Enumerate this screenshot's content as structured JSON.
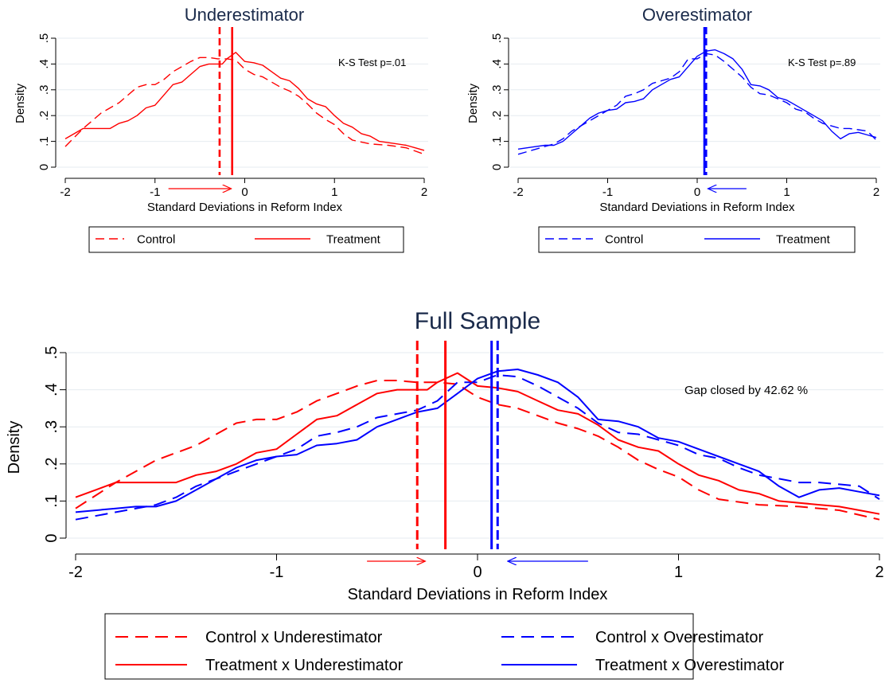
{
  "colors": {
    "underestimator": "#ff0000",
    "overestimator": "#0000ff",
    "title": "#1a2a4a",
    "grid": "#e6ebf0",
    "axis": "#000000"
  },
  "chart_data": [
    {
      "type": "line",
      "title": "Underestimator",
      "xlabel": "Standard Deviations in Reform Index",
      "ylabel": "Density",
      "xlim": [
        -2,
        2
      ],
      "ylim": [
        0,
        0.5
      ],
      "xticks": [
        -2,
        -1,
        0,
        1,
        2
      ],
      "xtick_labels": [
        "-2",
        "-1",
        "0",
        "1",
        "2"
      ],
      "yticks": [
        0,
        0.1,
        0.2,
        0.3,
        0.4,
        0.5
      ],
      "ytick_labels": [
        "0",
        ".1",
        ".2",
        ".3",
        ".4",
        ".5"
      ],
      "grid": true,
      "annotation": "K-S Test p=.01",
      "arrow": {
        "from": -0.85,
        "to": -0.15,
        "color": "red"
      },
      "vlines": [
        {
          "x": -0.28,
          "style": "dashed",
          "color": "red"
        },
        {
          "x": -0.14,
          "style": "solid",
          "color": "red"
        }
      ],
      "series": [
        {
          "name": "Control",
          "style": "dashed",
          "color": "red",
          "x": [
            -2.0,
            -1.8,
            -1.6,
            -1.5,
            -1.4,
            -1.2,
            -1.1,
            -1.0,
            -0.9,
            -0.8,
            -0.7,
            -0.6,
            -0.5,
            -0.4,
            -0.3,
            -0.2,
            -0.1,
            0.0,
            0.1,
            0.2,
            0.3,
            0.4,
            0.5,
            0.6,
            0.7,
            0.8,
            0.9,
            1.0,
            1.1,
            1.2,
            1.4,
            1.6,
            1.8,
            2.0
          ],
          "y": [
            0.08,
            0.15,
            0.21,
            0.23,
            0.25,
            0.31,
            0.32,
            0.32,
            0.34,
            0.37,
            0.39,
            0.41,
            0.425,
            0.425,
            0.42,
            0.42,
            0.415,
            0.38,
            0.36,
            0.35,
            0.33,
            0.31,
            0.295,
            0.275,
            0.245,
            0.21,
            0.185,
            0.165,
            0.13,
            0.105,
            0.09,
            0.085,
            0.075,
            0.05
          ]
        },
        {
          "name": "Treatment",
          "style": "solid",
          "color": "red",
          "x": [
            -2.0,
            -1.9,
            -1.8,
            -1.7,
            -1.6,
            -1.5,
            -1.4,
            -1.3,
            -1.2,
            -1.1,
            -1.0,
            -0.9,
            -0.8,
            -0.7,
            -0.6,
            -0.5,
            -0.4,
            -0.3,
            -0.25,
            -0.2,
            -0.1,
            0.0,
            0.1,
            0.2,
            0.3,
            0.4,
            0.5,
            0.6,
            0.7,
            0.8,
            0.9,
            1.0,
            1.1,
            1.2,
            1.3,
            1.4,
            1.5,
            1.6,
            1.7,
            1.8,
            1.9,
            2.0
          ],
          "y": [
            0.11,
            0.13,
            0.15,
            0.15,
            0.15,
            0.15,
            0.17,
            0.18,
            0.2,
            0.23,
            0.24,
            0.28,
            0.32,
            0.33,
            0.36,
            0.39,
            0.4,
            0.4,
            0.4,
            0.42,
            0.445,
            0.41,
            0.405,
            0.395,
            0.37,
            0.345,
            0.335,
            0.305,
            0.265,
            0.245,
            0.235,
            0.2,
            0.17,
            0.155,
            0.13,
            0.12,
            0.1,
            0.095,
            0.09,
            0.085,
            0.075,
            0.065
          ]
        }
      ],
      "legend": {
        "position": "bottom",
        "entries": [
          "Control",
          "Treatment"
        ]
      }
    },
    {
      "type": "line",
      "title": "Overestimator",
      "xlabel": "Standard Deviations in Reform Index",
      "ylabel": "Density",
      "xlim": [
        -2,
        2
      ],
      "ylim": [
        0,
        0.5
      ],
      "xticks": [
        -2,
        -1,
        0,
        1,
        2
      ],
      "xtick_labels": [
        "-2",
        "-1",
        "0",
        "1",
        "2"
      ],
      "yticks": [
        0,
        0.1,
        0.2,
        0.3,
        0.4,
        0.5
      ],
      "ytick_labels": [
        "0",
        ".1",
        ".2",
        ".3",
        ".4",
        ".5"
      ],
      "grid": true,
      "annotation": "K-S Test p=.89",
      "arrow": {
        "from": 0.55,
        "to": 0.12,
        "color": "blue"
      },
      "vlines": [
        {
          "x": 0.08,
          "style": "solid",
          "color": "blue"
        },
        {
          "x": 0.1,
          "style": "dashed",
          "color": "blue"
        }
      ],
      "series": [
        {
          "name": "Control",
          "style": "dashed",
          "color": "blue",
          "x": [
            -2.0,
            -1.8,
            -1.6,
            -1.5,
            -1.4,
            -1.2,
            -1.0,
            -0.9,
            -0.8,
            -0.7,
            -0.6,
            -0.5,
            -0.4,
            -0.3,
            -0.2,
            -0.1,
            0.0,
            0.1,
            0.2,
            0.3,
            0.4,
            0.5,
            0.6,
            0.7,
            0.8,
            0.9,
            1.0,
            1.1,
            1.2,
            1.3,
            1.4,
            1.5,
            1.6,
            1.7,
            1.8,
            1.9,
            2.0
          ],
          "y": [
            0.05,
            0.07,
            0.09,
            0.11,
            0.14,
            0.18,
            0.22,
            0.24,
            0.275,
            0.285,
            0.3,
            0.325,
            0.335,
            0.345,
            0.37,
            0.42,
            0.42,
            0.44,
            0.435,
            0.41,
            0.38,
            0.35,
            0.31,
            0.285,
            0.28,
            0.265,
            0.25,
            0.225,
            0.215,
            0.19,
            0.17,
            0.16,
            0.15,
            0.15,
            0.145,
            0.14,
            0.105
          ]
        },
        {
          "name": "Treatment",
          "style": "solid",
          "color": "blue",
          "x": [
            -2.0,
            -1.8,
            -1.7,
            -1.6,
            -1.5,
            -1.4,
            -1.3,
            -1.2,
            -1.1,
            -1.0,
            -0.9,
            -0.8,
            -0.7,
            -0.6,
            -0.5,
            -0.4,
            -0.3,
            -0.2,
            -0.1,
            0.0,
            0.1,
            0.2,
            0.3,
            0.4,
            0.5,
            0.6,
            0.7,
            0.8,
            0.9,
            1.0,
            1.1,
            1.2,
            1.3,
            1.4,
            1.5,
            1.6,
            1.7,
            1.8,
            1.9,
            2.0
          ],
          "y": [
            0.07,
            0.08,
            0.085,
            0.085,
            0.1,
            0.13,
            0.16,
            0.19,
            0.21,
            0.22,
            0.225,
            0.25,
            0.255,
            0.265,
            0.3,
            0.32,
            0.34,
            0.35,
            0.39,
            0.43,
            0.45,
            0.455,
            0.44,
            0.42,
            0.38,
            0.32,
            0.315,
            0.3,
            0.27,
            0.26,
            0.24,
            0.22,
            0.2,
            0.18,
            0.14,
            0.11,
            0.13,
            0.135,
            0.125,
            0.115
          ]
        }
      ],
      "legend": {
        "position": "bottom",
        "entries": [
          "Control",
          "Treatment"
        ]
      }
    },
    {
      "type": "line",
      "title": "Full Sample",
      "xlabel": "Standard Deviations in Reform Index",
      "ylabel": "Density",
      "xlim": [
        -2,
        2
      ],
      "ylim": [
        0,
        0.5
      ],
      "xticks": [
        -2,
        -1,
        0,
        1,
        2
      ],
      "xtick_labels": [
        "-2",
        "-1",
        "0",
        "1",
        "2"
      ],
      "yticks": [
        0,
        0.1,
        0.2,
        0.3,
        0.4,
        0.5
      ],
      "ytick_labels": [
        "0",
        ".1",
        ".2",
        ".3",
        ".4",
        ".5"
      ],
      "grid": true,
      "annotation": "Gap closed by 42.62 %",
      "arrows": [
        {
          "from": -0.55,
          "to": -0.26,
          "color": "red"
        },
        {
          "from": 0.55,
          "to": 0.15,
          "color": "blue"
        }
      ],
      "vlines": [
        {
          "x": -0.3,
          "style": "dashed",
          "color": "red"
        },
        {
          "x": -0.16,
          "style": "solid",
          "color": "red"
        },
        {
          "x": 0.07,
          "style": "solid",
          "color": "blue"
        },
        {
          "x": 0.1,
          "style": "dashed",
          "color": "blue"
        }
      ],
      "series": [
        {
          "name": "Control x Underestimator",
          "style": "dashed",
          "color": "red",
          "x": [
            -2.0,
            -1.8,
            -1.6,
            -1.5,
            -1.4,
            -1.2,
            -1.1,
            -1.0,
            -0.9,
            -0.8,
            -0.7,
            -0.6,
            -0.5,
            -0.4,
            -0.3,
            -0.2,
            -0.1,
            0.0,
            0.1,
            0.2,
            0.3,
            0.4,
            0.5,
            0.6,
            0.7,
            0.8,
            0.9,
            1.0,
            1.1,
            1.2,
            1.4,
            1.6,
            1.8,
            2.0
          ],
          "y": [
            0.08,
            0.15,
            0.21,
            0.23,
            0.25,
            0.31,
            0.32,
            0.32,
            0.34,
            0.37,
            0.39,
            0.41,
            0.425,
            0.425,
            0.42,
            0.42,
            0.415,
            0.38,
            0.36,
            0.35,
            0.33,
            0.31,
            0.295,
            0.275,
            0.245,
            0.21,
            0.185,
            0.165,
            0.13,
            0.105,
            0.09,
            0.085,
            0.075,
            0.05
          ]
        },
        {
          "name": "Control x Overestimator",
          "style": "dashed",
          "color": "blue",
          "x": [
            -2.0,
            -1.8,
            -1.6,
            -1.5,
            -1.4,
            -1.2,
            -1.0,
            -0.9,
            -0.8,
            -0.7,
            -0.6,
            -0.5,
            -0.4,
            -0.3,
            -0.2,
            -0.1,
            0.0,
            0.1,
            0.2,
            0.3,
            0.4,
            0.5,
            0.6,
            0.7,
            0.8,
            0.9,
            1.0,
            1.1,
            1.2,
            1.3,
            1.4,
            1.5,
            1.6,
            1.7,
            1.8,
            1.9,
            2.0
          ],
          "y": [
            0.05,
            0.07,
            0.09,
            0.11,
            0.14,
            0.18,
            0.22,
            0.24,
            0.275,
            0.285,
            0.3,
            0.325,
            0.335,
            0.345,
            0.37,
            0.42,
            0.42,
            0.44,
            0.435,
            0.41,
            0.38,
            0.35,
            0.31,
            0.285,
            0.28,
            0.265,
            0.25,
            0.225,
            0.215,
            0.19,
            0.17,
            0.16,
            0.15,
            0.15,
            0.145,
            0.14,
            0.105
          ]
        },
        {
          "name": "Treatment x Underestimator",
          "style": "solid",
          "color": "red",
          "x": [
            -2.0,
            -1.9,
            -1.8,
            -1.7,
            -1.6,
            -1.5,
            -1.4,
            -1.3,
            -1.2,
            -1.1,
            -1.0,
            -0.9,
            -0.8,
            -0.7,
            -0.6,
            -0.5,
            -0.4,
            -0.3,
            -0.25,
            -0.2,
            -0.1,
            0.0,
            0.1,
            0.2,
            0.3,
            0.4,
            0.5,
            0.6,
            0.7,
            0.8,
            0.9,
            1.0,
            1.1,
            1.2,
            1.3,
            1.4,
            1.5,
            1.6,
            1.7,
            1.8,
            1.9,
            2.0
          ],
          "y": [
            0.11,
            0.13,
            0.15,
            0.15,
            0.15,
            0.15,
            0.17,
            0.18,
            0.2,
            0.23,
            0.24,
            0.28,
            0.32,
            0.33,
            0.36,
            0.39,
            0.4,
            0.4,
            0.4,
            0.42,
            0.445,
            0.41,
            0.405,
            0.395,
            0.37,
            0.345,
            0.335,
            0.305,
            0.265,
            0.245,
            0.235,
            0.2,
            0.17,
            0.155,
            0.13,
            0.12,
            0.1,
            0.095,
            0.09,
            0.085,
            0.075,
            0.065
          ]
        },
        {
          "name": "Treatment x Overestimator",
          "style": "solid",
          "color": "blue",
          "x": [
            -2.0,
            -1.8,
            -1.7,
            -1.6,
            -1.5,
            -1.4,
            -1.3,
            -1.2,
            -1.1,
            -1.0,
            -0.9,
            -0.8,
            -0.7,
            -0.6,
            -0.5,
            -0.4,
            -0.3,
            -0.2,
            -0.1,
            0.0,
            0.1,
            0.2,
            0.3,
            0.4,
            0.5,
            0.6,
            0.7,
            0.8,
            0.9,
            1.0,
            1.1,
            1.2,
            1.3,
            1.4,
            1.5,
            1.6,
            1.7,
            1.8,
            1.9,
            2.0
          ],
          "y": [
            0.07,
            0.08,
            0.085,
            0.085,
            0.1,
            0.13,
            0.16,
            0.19,
            0.21,
            0.22,
            0.225,
            0.25,
            0.255,
            0.265,
            0.3,
            0.32,
            0.34,
            0.35,
            0.39,
            0.43,
            0.45,
            0.455,
            0.44,
            0.42,
            0.38,
            0.32,
            0.315,
            0.3,
            0.27,
            0.26,
            0.24,
            0.22,
            0.2,
            0.18,
            0.14,
            0.11,
            0.13,
            0.135,
            0.125,
            0.115
          ]
        }
      ],
      "legend": {
        "position": "bottom",
        "entries": [
          "Control x Underestimator",
          "Control x Overestimator",
          "Treatment x Underestimator",
          "Treatment x Overestimator"
        ]
      }
    }
  ]
}
